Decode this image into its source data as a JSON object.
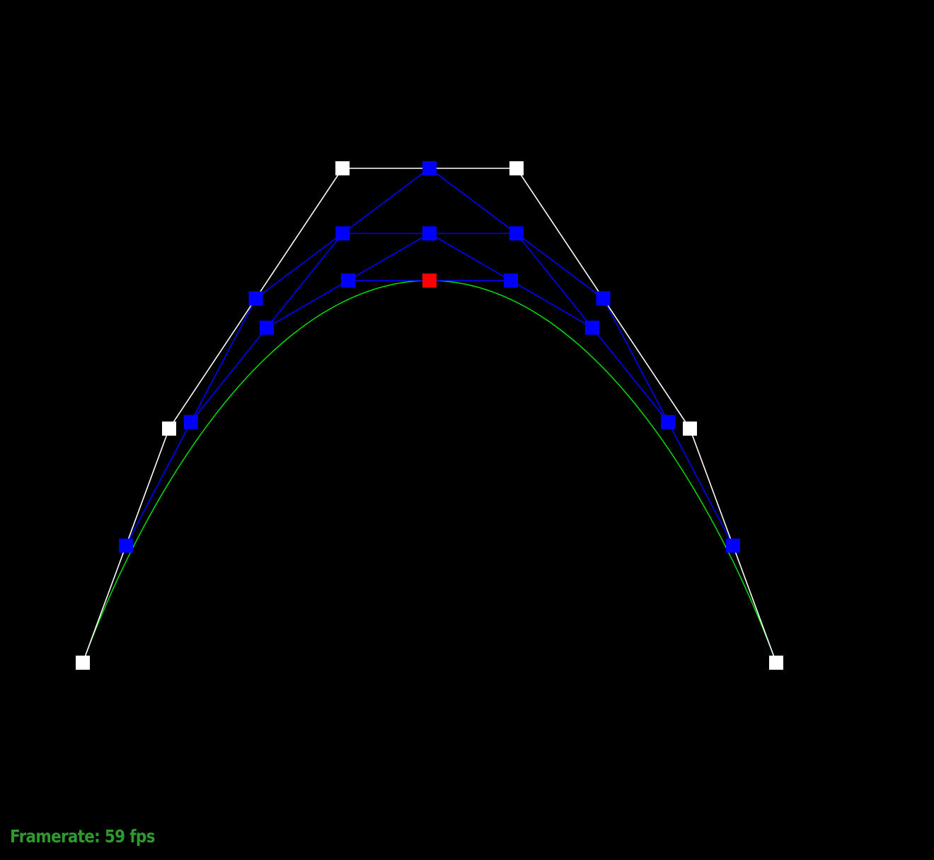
{
  "hud": {
    "framerate_label": "Framerate: 59 fps"
  },
  "colors": {
    "background": "#000000",
    "control_polygon": "#ffffff",
    "intermediate_points": "#0000ff",
    "curve": "#00e000",
    "current_point": "#ff0000",
    "hud_text": "#2e9a2e"
  },
  "scene": {
    "interpolation_t": 0.5,
    "curve_samples": 160
  }
}
